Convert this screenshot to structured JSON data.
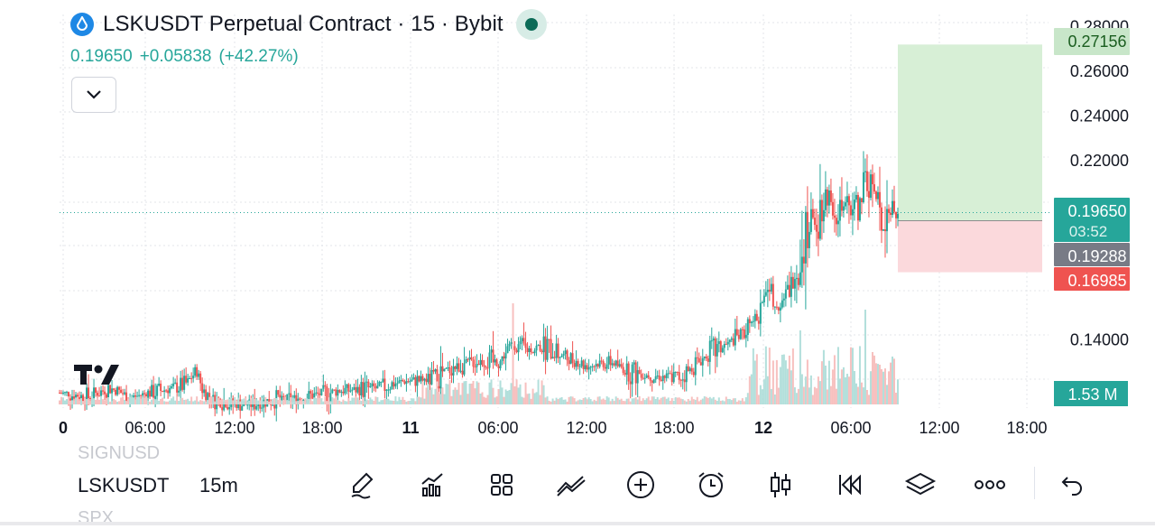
{
  "header": {
    "title": "LSKUSDT Perpetual Contract · 15 · Bybit",
    "last": "0.19650",
    "change": "+0.05838",
    "change_pct": "(+42.27%)"
  },
  "colors": {
    "up": "#26a69a",
    "down": "#ef5350",
    "green_zone": "#d7efd6",
    "red_zone": "#fbd9dc",
    "grid": "#e3e5ea"
  },
  "chart_data": {
    "type": "candlestick",
    "y_ticks": [
      "0.28000",
      "0.26000",
      "0.24000",
      "0.22000",
      "0.14000"
    ],
    "y_range": [
      0.11,
      0.285
    ],
    "x_ticks": [
      {
        "label": "0",
        "bold": true
      },
      {
        "label": "06:00"
      },
      {
        "label": "12:00"
      },
      {
        "label": "18:00"
      },
      {
        "label": "11",
        "bold": true
      },
      {
        "label": "06:00"
      },
      {
        "label": "12:00"
      },
      {
        "label": "18:00"
      },
      {
        "label": "12",
        "bold": true
      },
      {
        "label": "06:00"
      },
      {
        "label": "12:00"
      },
      {
        "label": "18:00"
      }
    ],
    "price_path": [
      [
        0,
        0.116
      ],
      [
        15,
        0.114
      ],
      [
        28,
        0.118
      ],
      [
        40,
        0.114
      ],
      [
        50,
        0.116
      ],
      [
        62,
        0.118
      ],
      [
        70,
        0.12
      ],
      [
        76,
        0.126
      ],
      [
        79,
        0.118
      ],
      [
        84,
        0.113
      ],
      [
        95,
        0.111
      ],
      [
        105,
        0.111
      ],
      [
        115,
        0.112
      ],
      [
        135,
        0.114
      ],
      [
        155,
        0.117
      ],
      [
        175,
        0.118
      ],
      [
        190,
        0.121
      ],
      [
        205,
        0.122
      ],
      [
        218,
        0.127
      ],
      [
        230,
        0.13
      ],
      [
        244,
        0.13
      ],
      [
        250,
        0.138
      ],
      [
        258,
        0.135
      ],
      [
        268,
        0.137
      ],
      [
        278,
        0.133
      ],
      [
        292,
        0.128
      ],
      [
        305,
        0.13
      ],
      [
        314,
        0.126
      ],
      [
        325,
        0.124
      ],
      [
        335,
        0.123
      ],
      [
        345,
        0.123
      ],
      [
        350,
        0.127
      ],
      [
        360,
        0.134
      ],
      [
        368,
        0.137
      ],
      [
        378,
        0.142
      ],
      [
        388,
        0.152
      ],
      [
        392,
        0.165
      ],
      [
        398,
        0.155
      ],
      [
        406,
        0.165
      ],
      [
        412,
        0.188
      ],
      [
        420,
        0.195
      ],
      [
        425,
        0.205
      ],
      [
        430,
        0.196
      ],
      [
        436,
        0.198
      ],
      [
        442,
        0.2
      ],
      [
        447,
        0.212
      ],
      [
        451,
        0.205
      ],
      [
        455,
        0.195
      ],
      [
        458,
        0.198
      ],
      [
        464,
        0.196
      ]
    ],
    "price_labels": [
      {
        "value": "0.27156",
        "kind": "target"
      },
      {
        "value": "0.19650",
        "sub": "03:52",
        "kind": "last"
      },
      {
        "value": "0.19288",
        "kind": "entry"
      },
      {
        "value": "0.16985",
        "kind": "stop"
      }
    ],
    "volume_label": "1.53 M",
    "position": {
      "target": 0.27156,
      "entry": 0.19288,
      "stop": 0.16985,
      "last": 0.1965
    }
  },
  "toolbar": {
    "symbol": "LSKUSDT",
    "symbol_above": "SIGNUSD",
    "symbol_below": "SPX",
    "timeframe": "15m",
    "tools": [
      {
        "name": "drawing-pen-icon"
      },
      {
        "name": "indicators-icon"
      },
      {
        "name": "layouts-icon"
      },
      {
        "name": "compare-icon"
      },
      {
        "name": "add-icon"
      },
      {
        "name": "alert-clock-icon"
      },
      {
        "name": "candles-icon"
      },
      {
        "name": "replay-icon"
      },
      {
        "name": "layers-icon"
      },
      {
        "name": "more-icon"
      },
      {
        "name": "undo-icon"
      }
    ]
  }
}
